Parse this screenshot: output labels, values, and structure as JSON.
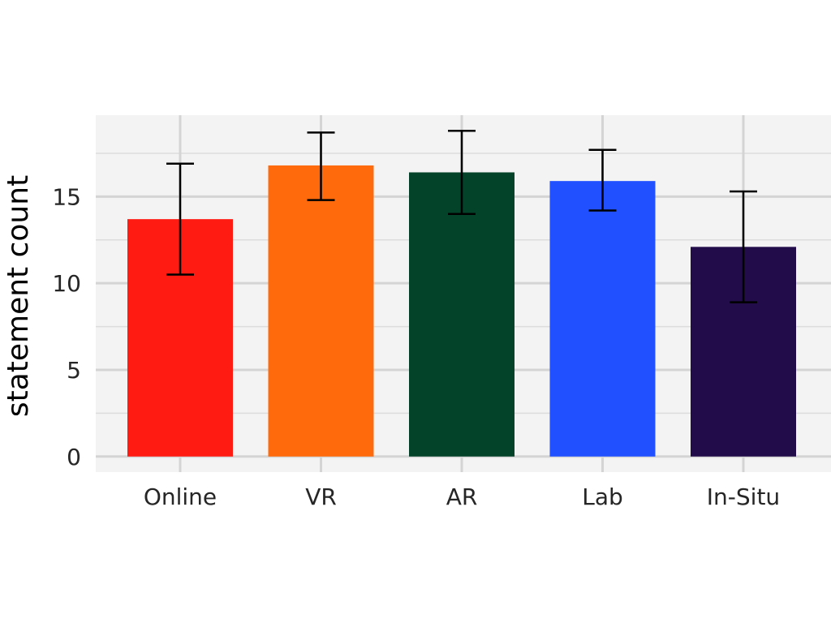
{
  "chart_data": {
    "type": "bar",
    "title": "",
    "xlabel": "",
    "ylabel": "statement count",
    "categories": [
      "Online",
      "VR",
      "AR",
      "Lab",
      "In-Situ"
    ],
    "values": [
      13.7,
      16.8,
      16.4,
      15.9,
      12.1
    ],
    "error_low": [
      10.5,
      14.8,
      14.0,
      14.2,
      8.9
    ],
    "error_high": [
      16.9,
      18.7,
      18.8,
      17.7,
      15.3
    ],
    "colors": [
      "#ff1a12",
      "#ff6b0c",
      "#03432a",
      "#2050ff",
      "#220c4a"
    ],
    "ylim": [
      -0.9,
      19.7
    ],
    "yticks": [
      0,
      5,
      10,
      15
    ],
    "grid": true,
    "background": "#f3f3f3"
  }
}
